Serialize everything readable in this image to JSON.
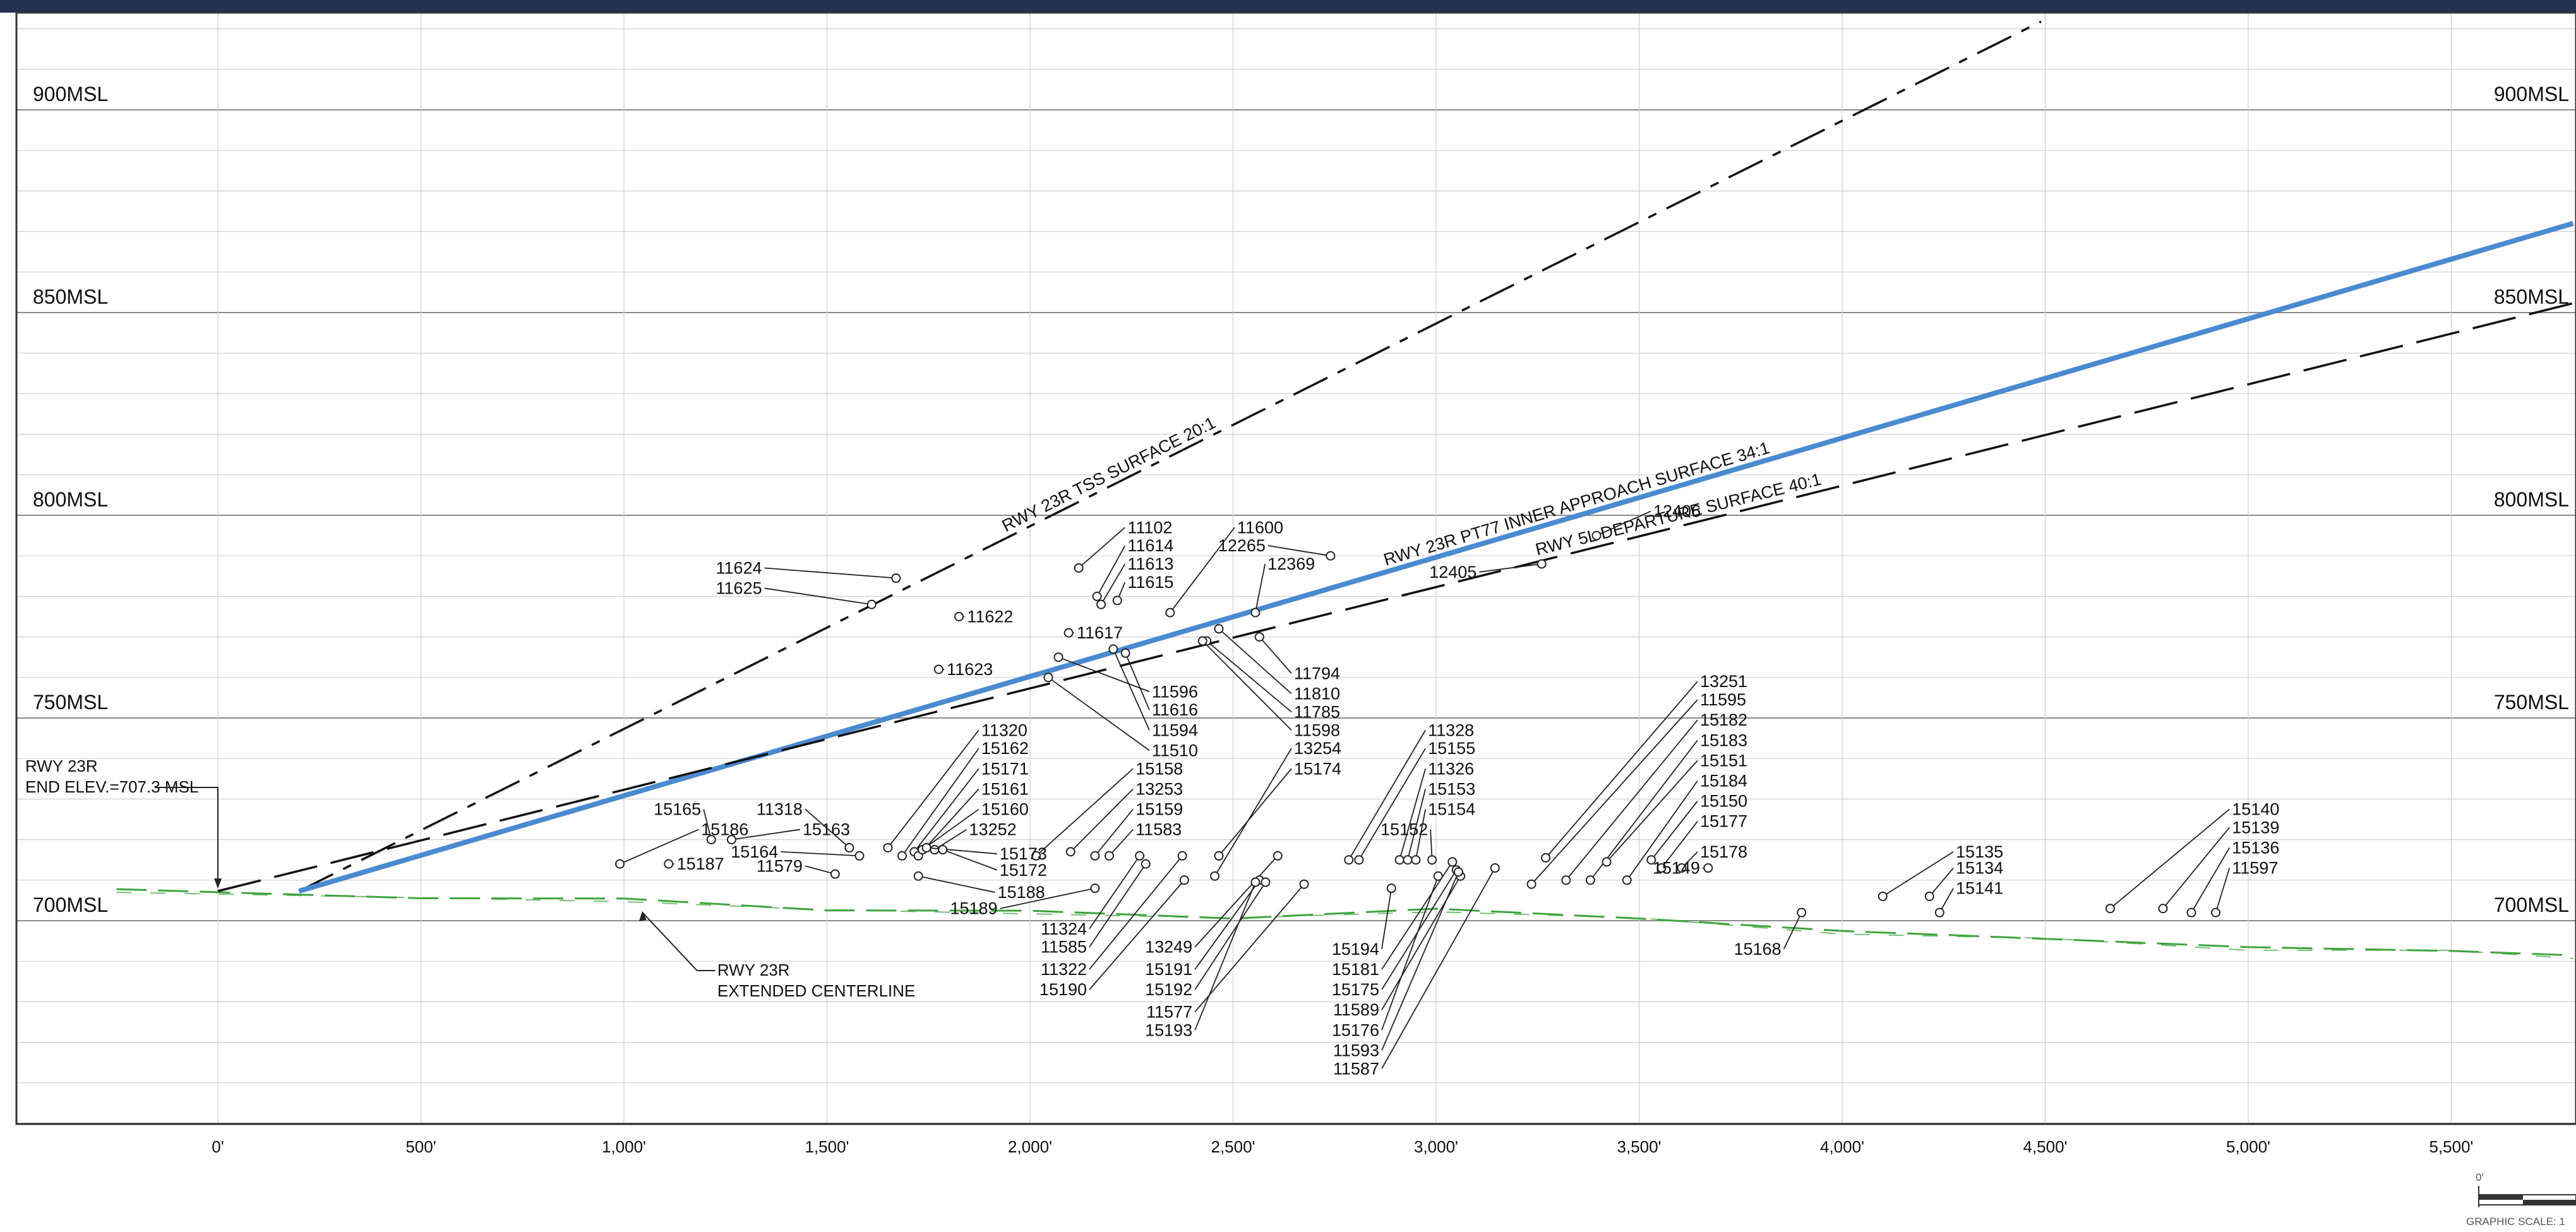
{
  "chart_data": {
    "type": "scatter",
    "x_ticks": [
      "0'",
      "500'",
      "1,000'",
      "1,500'",
      "2,000'",
      "2,500'",
      "3,000'",
      "3,500'",
      "4,000'",
      "4,500'",
      "5,000'",
      "5,500'"
    ],
    "y_ticks": [
      "900MSL",
      "850MSL",
      "800MSL",
      "750MSL",
      "700MSL"
    ],
    "xlim": [
      -500,
      5800
    ],
    "ylim": [
      650,
      920
    ],
    "grid": true,
    "runway_label": "RWY 23R\nEND ELEV.=707.3 MSL",
    "runway_end_elev": 707.3,
    "centerline_label": "RWY 23R\nEXTENDED CENTERLINE",
    "scale_label": "GRAPHIC SCALE: 1",
    "scale_zero": "0'",
    "surfaces": [
      {
        "label": "RWY 23R TSS SURFACE 20:1",
        "style": "dashdot",
        "color": "#111111",
        "points": [
          [
            200,
            707.3
          ],
          [
            4490,
            921.8
          ]
        ]
      },
      {
        "label": "RWY 23R PT77 INNER APPROACH SURFACE 34:1",
        "style": "solid",
        "color": "#4a8ad0",
        "points": [
          [
            200,
            707.3
          ],
          [
            5800,
            872.0
          ]
        ]
      },
      {
        "label": "RWY 5L DEPARTURE SURFACE 40:1",
        "style": "dash",
        "color": "#111111",
        "points": [
          [
            0,
            707.3
          ],
          [
            5800,
            852.3
          ]
        ]
      }
    ],
    "ground_profile": [
      [
        -250,
        707.3
      ],
      [
        500,
        706
      ],
      [
        1000,
        705
      ],
      [
        1500,
        703
      ],
      [
        2000,
        702
      ],
      [
        2500,
        701
      ],
      [
        3000,
        702.5
      ],
      [
        3500,
        701
      ],
      [
        4000,
        697
      ],
      [
        4500,
        696
      ],
      [
        5000,
        693
      ],
      [
        5500,
        693
      ],
      [
        5800,
        691
      ]
    ],
    "obstacles": [
      {
        "id": "11624",
        "x": 1670,
        "y": 784.5,
        "lx": 1340,
        "ly": 787
      },
      {
        "id": "11625",
        "x": 1610,
        "y": 778,
        "lx": 1340,
        "ly": 782
      },
      {
        "id": "11622",
        "x": 1825,
        "y": 775,
        "lx": 1845,
        "ly": 775
      },
      {
        "id": "11623",
        "x": 1775,
        "y": 762,
        "lx": 1795,
        "ly": 762
      },
      {
        "id": "11102",
        "x": 2120,
        "y": 787,
        "lx": 2240,
        "ly": 797
      },
      {
        "id": "11614",
        "x": 2165,
        "y": 780,
        "lx": 2240,
        "ly": 792.5
      },
      {
        "id": "11613",
        "x": 2175,
        "y": 778,
        "lx": 2240,
        "ly": 788
      },
      {
        "id": "11615",
        "x": 2215,
        "y": 779,
        "lx": 2240,
        "ly": 783.5
      },
      {
        "id": "11617",
        "x": 2095,
        "y": 771,
        "lx": 2115,
        "ly": 771
      },
      {
        "id": "11600",
        "x": 2345,
        "y": 776,
        "lx": 2510,
        "ly": 797
      },
      {
        "id": "12265",
        "x": 2740,
        "y": 790,
        "lx": 2580,
        "ly": 792.5
      },
      {
        "id": "12369",
        "x": 2555,
        "y": 776,
        "lx": 2585,
        "ly": 788
      },
      {
        "id": "12406",
        "x": 3395,
        "y": 795,
        "lx": 3535,
        "ly": 801
      },
      {
        "id": "12405",
        "x": 3260,
        "y": 788,
        "lx": 3100,
        "ly": 786
      },
      {
        "id": "11596",
        "x": 2070,
        "y": 765,
        "lx": 2300,
        "ly": 756.5
      },
      {
        "id": "11616",
        "x": 2235,
        "y": 766,
        "lx": 2300,
        "ly": 752
      },
      {
        "id": "11594",
        "x": 2205,
        "y": 767,
        "lx": 2300,
        "ly": 747
      },
      {
        "id": "11510",
        "x": 2045,
        "y": 760,
        "lx": 2300,
        "ly": 742
      },
      {
        "id": "11794",
        "x": 2565,
        "y": 770,
        "lx": 2650,
        "ly": 761
      },
      {
        "id": "11810",
        "x": 2465,
        "y": 772,
        "lx": 2650,
        "ly": 756
      },
      {
        "id": "11785",
        "x": 2435,
        "y": 769,
        "lx": 2650,
        "ly": 751.5
      },
      {
        "id": "11598",
        "x": 2425,
        "y": 769,
        "lx": 2650,
        "ly": 747
      },
      {
        "id": "13254",
        "x": 2455,
        "y": 711,
        "lx": 2650,
        "ly": 742.5
      },
      {
        "id": "15174",
        "x": 2465,
        "y": 716,
        "lx": 2650,
        "ly": 737.5
      },
      {
        "id": "11320",
        "x": 1650,
        "y": 718,
        "lx": 1880,
        "ly": 747
      },
      {
        "id": "15162",
        "x": 1685,
        "y": 716,
        "lx": 1880,
        "ly": 742.5
      },
      {
        "id": "15171",
        "x": 1715,
        "y": 717,
        "lx": 1880,
        "ly": 737.5
      },
      {
        "id": "15161",
        "x": 1725,
        "y": 716,
        "lx": 1880,
        "ly": 732.5
      },
      {
        "id": "15160",
        "x": 1735,
        "y": 717.5,
        "lx": 1880,
        "ly": 727.5
      },
      {
        "id": "13252",
        "x": 1765,
        "y": 717.5,
        "lx": 1850,
        "ly": 722.5
      },
      {
        "id": "15158",
        "x": 2015,
        "y": 716,
        "lx": 2260,
        "ly": 737.5
      },
      {
        "id": "13253",
        "x": 2100,
        "y": 717,
        "lx": 2260,
        "ly": 732.5
      },
      {
        "id": "15159",
        "x": 2160,
        "y": 716,
        "lx": 2260,
        "ly": 727.5
      },
      {
        "id": "11583",
        "x": 2195,
        "y": 716,
        "lx": 2260,
        "ly": 722.5
      },
      {
        "id": "15173",
        "x": 1745,
        "y": 718,
        "lx": 1925,
        "ly": 716.5
      },
      {
        "id": "15172",
        "x": 1785,
        "y": 717.5,
        "lx": 1925,
        "ly": 712.5
      },
      {
        "id": "15188",
        "x": 1725,
        "y": 711,
        "lx": 1920,
        "ly": 707
      },
      {
        "id": "15189",
        "x": 2160,
        "y": 708,
        "lx": 1920,
        "ly": 703
      },
      {
        "id": "15165",
        "x": 1215,
        "y": 720,
        "lx": 1190,
        "ly": 727.5
      },
      {
        "id": "15186",
        "x": 990,
        "y": 714,
        "lx": 1190,
        "ly": 722.5
      },
      {
        "id": "15187",
        "x": 1110,
        "y": 714,
        "lx": 1130,
        "ly": 714
      },
      {
        "id": "11318",
        "x": 1555,
        "y": 718,
        "lx": 1440,
        "ly": 727.5
      },
      {
        "id": "15163",
        "x": 1265,
        "y": 720,
        "lx": 1440,
        "ly": 722.5
      },
      {
        "id": "15164",
        "x": 1580,
        "y": 716,
        "lx": 1380,
        "ly": 717
      },
      {
        "id": "11579",
        "x": 1520,
        "y": 711.5,
        "lx": 1440,
        "ly": 713.5
      },
      {
        "id": "11324",
        "x": 2270,
        "y": 716,
        "lx": 2140,
        "ly": 698
      },
      {
        "id": "11585",
        "x": 2285,
        "y": 714,
        "lx": 2140,
        "ly": 693.5
      },
      {
        "id": "11322",
        "x": 2375,
        "y": 716,
        "lx": 2140,
        "ly": 688
      },
      {
        "id": "15190",
        "x": 2380,
        "y": 710,
        "lx": 2140,
        "ly": 683
      },
      {
        "id": "13249",
        "x": 2610,
        "y": 716,
        "lx": 2400,
        "ly": 693.5
      },
      {
        "id": "15191",
        "x": 2565,
        "y": 710,
        "lx": 2400,
        "ly": 688
      },
      {
        "id": "15192",
        "x": 2580,
        "y": 709.5,
        "lx": 2400,
        "ly": 683
      },
      {
        "id": "11577",
        "x": 2675,
        "y": 709,
        "lx": 2400,
        "ly": 677.5
      },
      {
        "id": "15193",
        "x": 2555,
        "y": 709.5,
        "lx": 2400,
        "ly": 673
      },
      {
        "id": "11328",
        "x": 2785,
        "y": 715,
        "lx": 2980,
        "ly": 747
      },
      {
        "id": "15155",
        "x": 2810,
        "y": 715,
        "lx": 2980,
        "ly": 742.5
      },
      {
        "id": "11326",
        "x": 2910,
        "y": 715,
        "lx": 2980,
        "ly": 737.5
      },
      {
        "id": "15153",
        "x": 2930,
        "y": 715,
        "lx": 2980,
        "ly": 732.5
      },
      {
        "id": "15154",
        "x": 2950,
        "y": 715,
        "lx": 2980,
        "ly": 727.5
      },
      {
        "id": "15152",
        "x": 2990,
        "y": 715,
        "lx": 2980,
        "ly": 722.5
      },
      {
        "id": "15194",
        "x": 2890,
        "y": 708,
        "lx": 2860,
        "ly": 693
      },
      {
        "id": "15181",
        "x": 3040,
        "y": 714.5,
        "lx": 2860,
        "ly": 688
      },
      {
        "id": "15175",
        "x": 3050,
        "y": 712.5,
        "lx": 2860,
        "ly": 683
      },
      {
        "id": "11589",
        "x": 3060,
        "y": 711,
        "lx": 2860,
        "ly": 678
      },
      {
        "id": "15176",
        "x": 3005,
        "y": 711,
        "lx": 2860,
        "ly": 673
      },
      {
        "id": "11593",
        "x": 3055,
        "y": 712,
        "lx": 2860,
        "ly": 668
      },
      {
        "id": "11587",
        "x": 3145,
        "y": 713,
        "lx": 2860,
        "ly": 663.5
      },
      {
        "id": "13251",
        "x": 3270,
        "y": 715.5,
        "lx": 3650,
        "ly": 759
      },
      {
        "id": "11595",
        "x": 3235,
        "y": 709,
        "lx": 3650,
        "ly": 754.5
      },
      {
        "id": "15182",
        "x": 3320,
        "y": 710,
        "lx": 3650,
        "ly": 749.5
      },
      {
        "id": "15183",
        "x": 3380,
        "y": 710,
        "lx": 3650,
        "ly": 744.5
      },
      {
        "id": "15151",
        "x": 3420,
        "y": 714.5,
        "lx": 3650,
        "ly": 739.5
      },
      {
        "id": "15184",
        "x": 3470,
        "y": 710,
        "lx": 3650,
        "ly": 734.5
      },
      {
        "id": "15150",
        "x": 3530,
        "y": 715,
        "lx": 3650,
        "ly": 729.5
      },
      {
        "id": "15177",
        "x": 3555,
        "y": 713,
        "lx": 3650,
        "ly": 724.5
      },
      {
        "id": "15178",
        "x": 3605,
        "y": 713,
        "lx": 3650,
        "ly": 717
      },
      {
        "id": "15149",
        "x": 3670,
        "y": 713,
        "lx": 3650,
        "ly": 713
      },
      {
        "id": "15168",
        "x": 3900,
        "y": 702,
        "lx": 3850,
        "ly": 693
      },
      {
        "id": "15135",
        "x": 4100,
        "y": 706,
        "lx": 4280,
        "ly": 717
      },
      {
        "id": "15134",
        "x": 4215,
        "y": 706,
        "lx": 4280,
        "ly": 713
      },
      {
        "id": "15141",
        "x": 4240,
        "y": 702,
        "lx": 4280,
        "ly": 708
      },
      {
        "id": "15140",
        "x": 4660,
        "y": 703,
        "lx": 4960,
        "ly": 727.5
      },
      {
        "id": "15139",
        "x": 4790,
        "y": 703,
        "lx": 4960,
        "ly": 723
      },
      {
        "id": "15136",
        "x": 4860,
        "y": 702,
        "lx": 4960,
        "ly": 718
      },
      {
        "id": "11597",
        "x": 4920,
        "y": 702,
        "lx": 4960,
        "ly": 713
      }
    ]
  }
}
